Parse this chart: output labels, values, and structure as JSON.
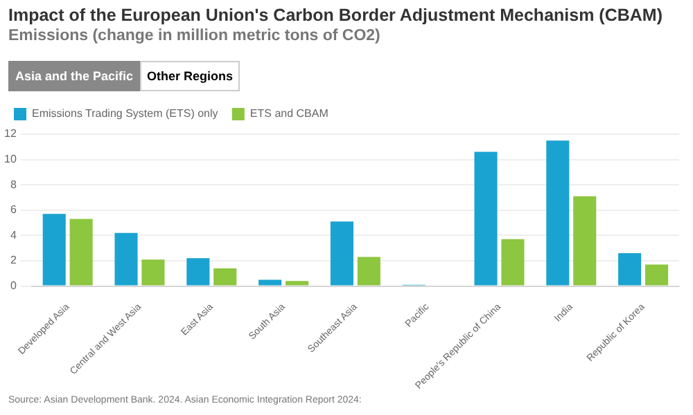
{
  "chart_data": {
    "type": "bar",
    "title": "Impact of the European Union's Carbon Border Adjustment Mechanism (CBAM)",
    "subtitle": "Emissions (change in million metric tons of CO2)",
    "annotations": [
      "Asia and the Pacific",
      "Other Regions",
      "Source: Asian Development Bank. 2024. Asian Economic Integration Report 2024:"
    ],
    "categories": [
      "Developed Asia",
      "Central and West Asia",
      "East Asia",
      "South Asia",
      "Southeast Asia",
      "Pacific",
      "People's Republic of China",
      "India",
      "Republic of Korea"
    ],
    "series": [
      {
        "name": "Emissions Trading System (ETS) only",
        "color": "#1aa3d1",
        "values": [
          5.7,
          4.2,
          2.2,
          0.5,
          5.1,
          0.1,
          10.6,
          11.5,
          2.6
        ]
      },
      {
        "name": "ETS and CBAM",
        "color": "#8dc63f",
        "values": [
          5.3,
          2.1,
          1.4,
          0.4,
          2.3,
          null,
          3.7,
          7.1,
          1.7
        ]
      }
    ],
    "ylim": [
      0,
      12
    ],
    "yticks": [
      0,
      2,
      4,
      6,
      8,
      10,
      12
    ],
    "grid": "y",
    "legend": "top left"
  }
}
